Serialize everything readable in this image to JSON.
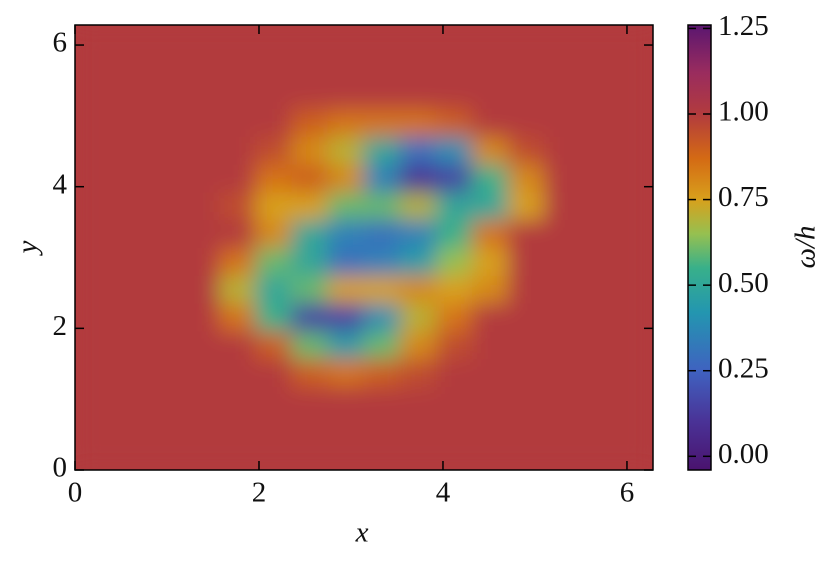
{
  "chart_data": {
    "type": "heatmap",
    "x_label": "x",
    "y_label": "y",
    "colorbar_label": "ω/h",
    "xlim": [
      0,
      6.283
    ],
    "ylim": [
      0,
      6.283
    ],
    "xticks": [
      0,
      2,
      4,
      6
    ],
    "yticks": [
      0,
      2,
      4,
      6
    ],
    "clim": [
      -0.04,
      1.26
    ],
    "cticks": [
      {
        "value": 0,
        "label": "0.00"
      },
      {
        "value": 0.25,
        "label": "0.25"
      },
      {
        "value": 0.5,
        "label": "0.50"
      },
      {
        "value": 0.75,
        "label": "0.75"
      },
      {
        "value": 1,
        "label": "1.00"
      },
      {
        "value": 1.25,
        "label": "1.25"
      }
    ],
    "colormap": [
      {
        "value": -0.04,
        "color": "#4a136e"
      },
      {
        "value": 0.1,
        "color": "#4a3296"
      },
      {
        "value": 0.25,
        "color": "#3f62c0"
      },
      {
        "value": 0.42,
        "color": "#2396b0"
      },
      {
        "value": 0.55,
        "color": "#38b08a"
      },
      {
        "value": 0.65,
        "color": "#96c050"
      },
      {
        "value": 0.75,
        "color": "#d8a01c"
      },
      {
        "value": 0.87,
        "color": "#d46a14"
      },
      {
        "value": 1.0,
        "color": "#b23b3e"
      },
      {
        "value": 1.12,
        "color": "#9a2c5e"
      },
      {
        "value": 1.26,
        "color": "#5a1670"
      }
    ],
    "z": [
      [
        1,
        1,
        1,
        1,
        1,
        1,
        1,
        1,
        1,
        1,
        1,
        1,
        1,
        1,
        1,
        1
      ],
      [
        1,
        1,
        1,
        1,
        1,
        1,
        1,
        1,
        1,
        1,
        1,
        1,
        1,
        1,
        1,
        1
      ],
      [
        1,
        1,
        1,
        1,
        1,
        1,
        1,
        1,
        1,
        1,
        1,
        1,
        1,
        1,
        1,
        1
      ],
      [
        1,
        1,
        1,
        1,
        1,
        1,
        0.9,
        0.85,
        0.9,
        0.95,
        1,
        1,
        1,
        1,
        1,
        1
      ],
      [
        1,
        1,
        1,
        1,
        1,
        0.9,
        0.6,
        0.45,
        0.6,
        0.8,
        0.95,
        1,
        1,
        1,
        1,
        1
      ],
      [
        1,
        1,
        1,
        1,
        0.85,
        0.55,
        0.15,
        0.15,
        0.4,
        0.7,
        0.85,
        1,
        1,
        1,
        1,
        1
      ],
      [
        1,
        1,
        1,
        1,
        0.7,
        0.5,
        0.6,
        0.75,
        0.75,
        0.8,
        0.75,
        0.8,
        1,
        1,
        1,
        1
      ],
      [
        1,
        1,
        1,
        1,
        0.85,
        0.6,
        0.5,
        0.3,
        0.35,
        0.45,
        0.65,
        0.75,
        1,
        1,
        1,
        1
      ],
      [
        1,
        1,
        1,
        1,
        1,
        0.8,
        0.5,
        0.35,
        0.3,
        0.35,
        0.55,
        0.85,
        1,
        1,
        1,
        1
      ],
      [
        1,
        1,
        1,
        1,
        0.95,
        0.75,
        0.75,
        0.6,
        0.6,
        0.7,
        0.5,
        0.5,
        0.75,
        1,
        1,
        1
      ],
      [
        1,
        1,
        1,
        1,
        1,
        0.85,
        0.9,
        0.8,
        0.35,
        0.1,
        0.15,
        0.55,
        0.8,
        1,
        1,
        1
      ],
      [
        1,
        1,
        1,
        1,
        1,
        0.95,
        0.8,
        0.7,
        0.5,
        0.3,
        0.4,
        0.8,
        0.95,
        1,
        1,
        1
      ],
      [
        1,
        1,
        1,
        1,
        1,
        1,
        0.9,
        0.85,
        0.85,
        0.85,
        0.9,
        1,
        1,
        1,
        1,
        1
      ],
      [
        1,
        1,
        1,
        1,
        1,
        1,
        1,
        1,
        1,
        1,
        1,
        1,
        1,
        1,
        1,
        1
      ],
      [
        1,
        1,
        1,
        1,
        1,
        1,
        1,
        1,
        1,
        1,
        1,
        1,
        1,
        1,
        1,
        1
      ],
      [
        1,
        1,
        1,
        1,
        1,
        1,
        1,
        1,
        1,
        1,
        1,
        1,
        1,
        1,
        1,
        1
      ]
    ]
  }
}
